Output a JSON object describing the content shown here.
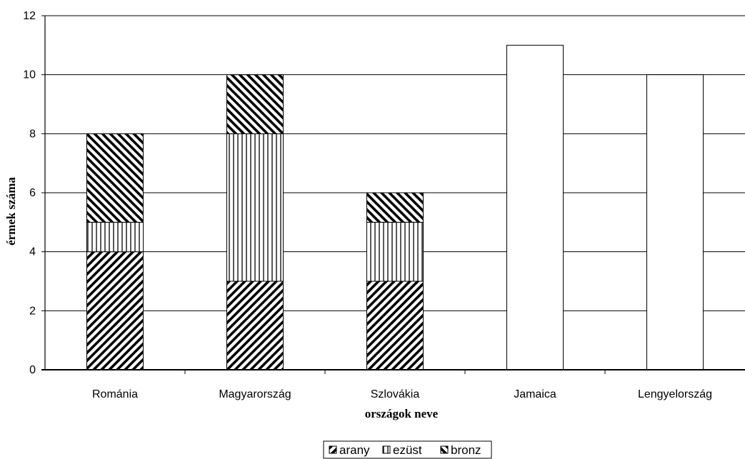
{
  "chart_data": {
    "type": "bar",
    "stacked": true,
    "categories": [
      "Románia",
      "Magyarország",
      "Szlovákia",
      "Jamaica",
      "Lengyelország"
    ],
    "series": [
      {
        "name": "arany",
        "pattern": "diagonal-up",
        "values": [
          4,
          3,
          3,
          0,
          0
        ]
      },
      {
        "name": "ezüst",
        "pattern": "vertical",
        "values": [
          1,
          5,
          2,
          0,
          0
        ]
      },
      {
        "name": "bronz",
        "pattern": "diagonal-down",
        "values": [
          3,
          2,
          1,
          0,
          0
        ]
      }
    ],
    "unassigned_totals": [
      0,
      0,
      0,
      11,
      10
    ],
    "xlabel": "országok neve",
    "ylabel": "érmek száma",
    "ylim": [
      0,
      12
    ],
    "yticks": [
      0,
      2,
      4,
      6,
      8,
      10,
      12
    ],
    "grid": true,
    "legend_position": "bottom",
    "colors": {
      "bar_fill": "#ffffff",
      "hatch": "#000000",
      "grid": "#000000",
      "background": "#ffffff"
    }
  }
}
